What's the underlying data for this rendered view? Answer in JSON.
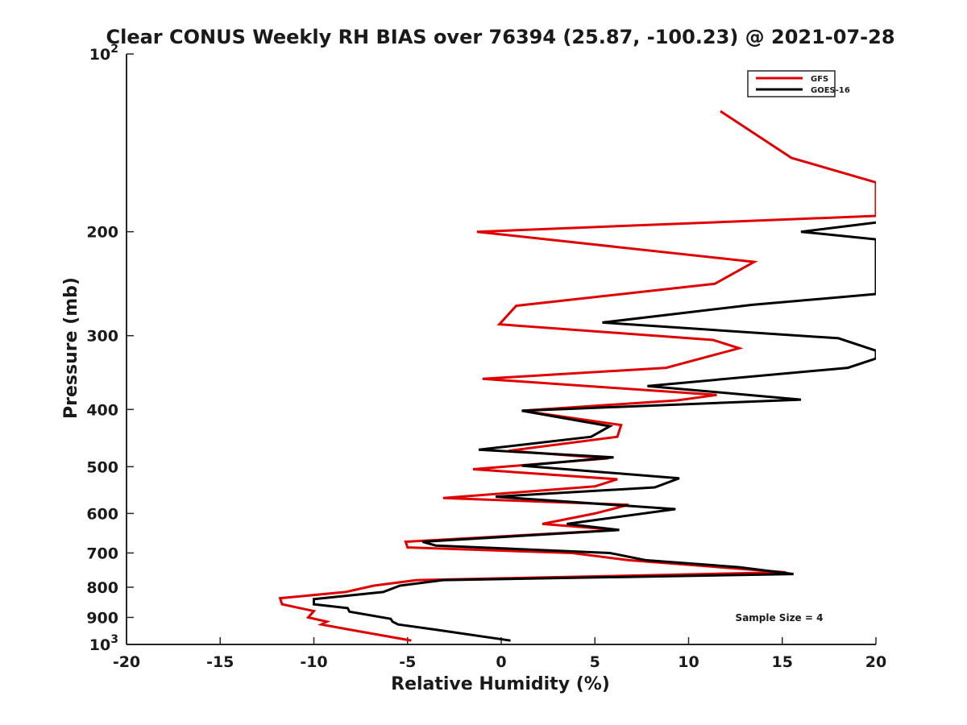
{
  "chart_data": {
    "type": "line",
    "title": "Clear CONUS Weekly RH BIAS over 76394 (25.87, -100.23) @ 2021-07-28",
    "xlabel": "Relative Humidity (%)",
    "ylabel": "Pressure (mb)",
    "xlim": [
      -20,
      20
    ],
    "ylim": [
      100,
      1000
    ],
    "y_scale": "log",
    "y_reversed": true,
    "grid": false,
    "legend_position": "top-right",
    "x_ticks": [
      "-20",
      "-15",
      "-10",
      "-5",
      "0",
      "5",
      "10",
      "15",
      "20"
    ],
    "y_ticks": [
      {
        "value": 100,
        "base": "10",
        "exp": "2"
      },
      {
        "value": 200,
        "label": "200"
      },
      {
        "value": 300,
        "label": "300"
      },
      {
        "value": 400,
        "label": "400"
      },
      {
        "value": 500,
        "label": "500"
      },
      {
        "value": 600,
        "label": "600"
      },
      {
        "value": 700,
        "label": "700"
      },
      {
        "value": 800,
        "label": "800"
      },
      {
        "value": 900,
        "label": "900"
      },
      {
        "value": 1000,
        "base": "10",
        "exp": "3"
      }
    ],
    "annotation": "Sample Size = 4",
    "series": [
      {
        "name": "GFS",
        "color": "#e00000",
        "points": [
          [
            11.7,
            125
          ],
          [
            15.5,
            150
          ],
          [
            20,
            165
          ],
          [
            20,
            188
          ],
          [
            -1.3,
            200
          ],
          [
            13.5,
            225
          ],
          [
            11.4,
            245
          ],
          [
            0.8,
            267
          ],
          [
            -0.1,
            287
          ],
          [
            11.3,
            305
          ],
          [
            12.7,
            315
          ],
          [
            8.8,
            340
          ],
          [
            -1.0,
            355
          ],
          [
            11.5,
            378
          ],
          [
            9.4,
            386
          ],
          [
            1.1,
            402
          ],
          [
            6.4,
            425
          ],
          [
            6.2,
            445
          ],
          [
            0.4,
            470
          ],
          [
            5.7,
            484
          ],
          [
            -1.5,
            505
          ],
          [
            6.2,
            525
          ],
          [
            5.0,
            540
          ],
          [
            -3.1,
            565
          ],
          [
            6.8,
            580
          ],
          [
            5.0,
            600
          ],
          [
            2.2,
            625
          ],
          [
            6.2,
            640
          ],
          [
            -5.1,
            670
          ],
          [
            -5.0,
            685
          ],
          [
            3.8,
            700
          ],
          [
            6.8,
            720
          ],
          [
            15.2,
            755
          ],
          [
            -4.5,
            778
          ],
          [
            -6.8,
            795
          ],
          [
            -8.3,
            815
          ],
          [
            -11.8,
            835
          ],
          [
            -11.7,
            855
          ],
          [
            -10.0,
            878
          ],
          [
            -10.3,
            900
          ],
          [
            -9.3,
            915
          ],
          [
            -9.6,
            925
          ],
          [
            -8.0,
            945
          ],
          [
            -4.8,
            985
          ]
        ]
      },
      {
        "name": "GOES-16",
        "color": "#000000",
        "points": [
          [
            20,
            193
          ],
          [
            16.0,
            200
          ],
          [
            20,
            206
          ],
          [
            20,
            255
          ],
          [
            13.4,
            266
          ],
          [
            5.4,
            285
          ],
          [
            18.0,
            303
          ],
          [
            20,
            318
          ],
          [
            20,
            328
          ],
          [
            18.5,
            340
          ],
          [
            7.8,
            365
          ],
          [
            16.0,
            385
          ],
          [
            1.1,
            402
          ],
          [
            5.8,
            427
          ],
          [
            4.8,
            445
          ],
          [
            -1.2,
            468
          ],
          [
            6.0,
            482
          ],
          [
            1.1,
            498
          ],
          [
            9.5,
            523
          ],
          [
            8.2,
            542
          ],
          [
            -0.3,
            562
          ],
          [
            9.3,
            590
          ],
          [
            3.5,
            625
          ],
          [
            6.3,
            640
          ],
          [
            -4.2,
            670
          ],
          [
            -3.5,
            680
          ],
          [
            5.8,
            700
          ],
          [
            7.7,
            720
          ],
          [
            12.7,
            740
          ],
          [
            15.6,
            760
          ],
          [
            -3.1,
            778
          ],
          [
            -5.4,
            795
          ],
          [
            -6.3,
            815
          ],
          [
            -10.0,
            838
          ],
          [
            -10.0,
            855
          ],
          [
            -8.2,
            868
          ],
          [
            -8.1,
            880
          ],
          [
            -5.9,
            905
          ],
          [
            -5.8,
            915
          ],
          [
            -5.5,
            925
          ],
          [
            -3.4,
            945
          ],
          [
            0.5,
            985
          ]
        ]
      }
    ]
  }
}
